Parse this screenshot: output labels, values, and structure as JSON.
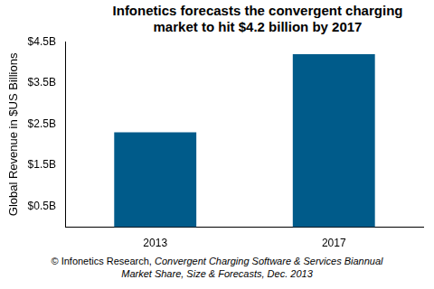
{
  "chart_data": {
    "type": "bar",
    "title": "Infonetics forecasts the convergent charging market to hit $4.2 billion by 2017",
    "y_label": "Global Revenue in $US Billions",
    "categories": [
      "2013",
      "2017"
    ],
    "values": [
      2.3,
      4.2
    ],
    "color": "#005b8a",
    "ylim": [
      0,
      4.5
    ],
    "yticks": [
      {
        "value": 0.5,
        "label": "$0.5B"
      },
      {
        "value": 1.5,
        "label": "$1.5B"
      },
      {
        "value": 2.5,
        "label": "$2.5B"
      },
      {
        "value": 3.5,
        "label": "$3.5B"
      },
      {
        "value": 4.5,
        "label": "$4.5B"
      }
    ],
    "grid": false,
    "source": "© Infonetics Research,",
    "report": "Convergent Charging Software & Services Biannual Market Share, Size & Forecasts, Dec. 2013"
  }
}
